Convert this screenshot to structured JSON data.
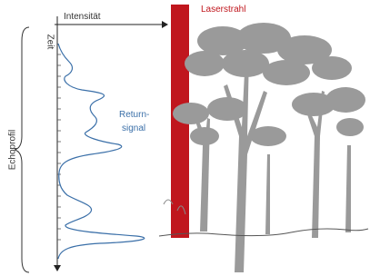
{
  "labels": {
    "intensity": "Intensität",
    "time": "Zeit",
    "echo_profile": "Echoprofil",
    "return_signal": [
      "Return-",
      "signal"
    ],
    "laser_beam": "Laserstrahl"
  }
}
